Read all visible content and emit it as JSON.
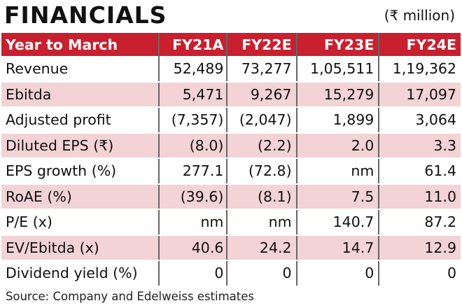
{
  "title": "FINANCIALS",
  "unit": "(₹ million)",
  "headers": [
    "Year to March",
    "FY21A",
    "FY22E",
    "FY23E",
    "FY24E"
  ],
  "rows": [
    [
      "Revenue",
      "52,489",
      "73,277",
      "1,05,511",
      "1,19,362"
    ],
    [
      "Ebitda",
      "5,471",
      "9,267",
      "15,279",
      "17,097"
    ],
    [
      "Adjusted profit",
      "(7,357)",
      "(2,047)",
      "1,899",
      "3,064"
    ],
    [
      "Diluted EPS (₹)",
      "(8.0)",
      "(2.2)",
      "2.0",
      "3.3"
    ],
    [
      "EPS growth (%)",
      "277.1",
      "(72.8)",
      "nm",
      "61.4"
    ],
    [
      "RoAE (%)",
      "(39.6)",
      "(8.1)",
      "7.5",
      "11.0"
    ],
    [
      "P/E (x)",
      "nm",
      "nm",
      "140.7",
      "87.2"
    ],
    [
      "EV/Ebitda (x)",
      "40.6",
      "24.2",
      "14.7",
      "12.9"
    ],
    [
      "Dividend yield (%)",
      "0",
      "0",
      "0",
      "0"
    ]
  ],
  "source": "Source: Company and Edelweiss estimates",
  "colors": {
    "header": "#c8202f",
    "alt_row": "#f3d3d5"
  }
}
